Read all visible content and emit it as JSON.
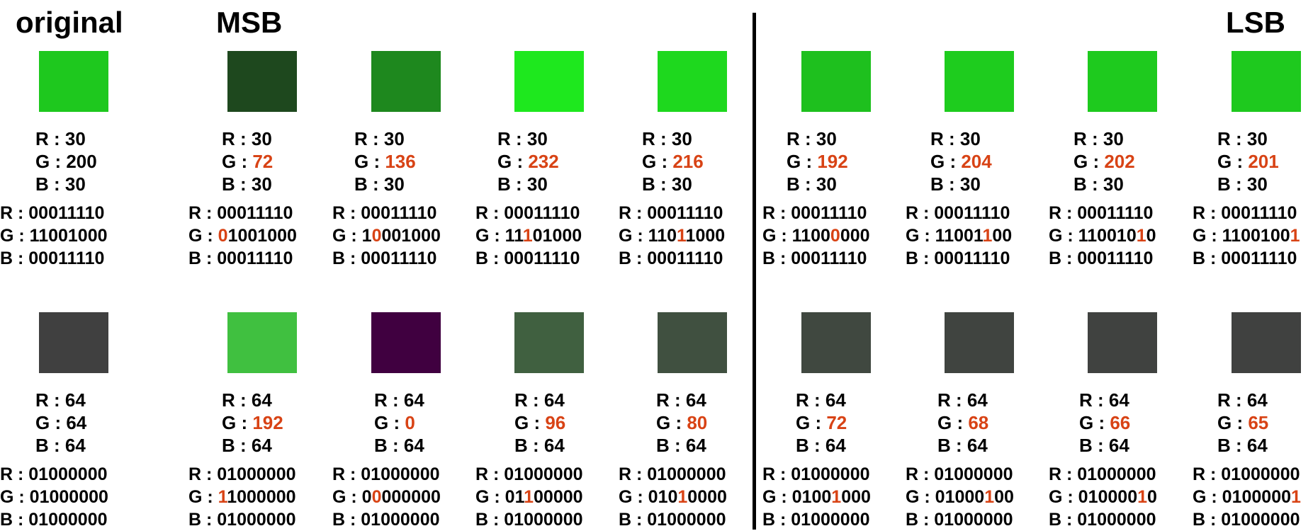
{
  "header": {
    "original": "original",
    "msb": "MSB",
    "lsb": "LSB"
  },
  "colors": {
    "highlight": "#d84315",
    "divider": "#000000",
    "text": "#000000"
  },
  "rows": [
    {
      "cells": [
        {
          "swatch": "#1ec81e",
          "r": "30",
          "g": "200",
          "b": "30",
          "r_bin": "00011110",
          "g_bin": "11001000",
          "b_bin": "00011110",
          "flip": -1
        },
        {
          "swatch": "#1e481e",
          "r": "30",
          "g": "72",
          "b": "30",
          "r_bin": "00011110",
          "g_bin": "01001000",
          "b_bin": "00011110",
          "flip": 0
        },
        {
          "swatch": "#1e881e",
          "r": "30",
          "g": "136",
          "b": "30",
          "r_bin": "00011110",
          "g_bin": "10001000",
          "b_bin": "00011110",
          "flip": 1
        },
        {
          "swatch": "#1ee81e",
          "r": "30",
          "g": "232",
          "b": "30",
          "r_bin": "00011110",
          "g_bin": "11101000",
          "b_bin": "00011110",
          "flip": 2
        },
        {
          "swatch": "#1ed81e",
          "r": "30",
          "g": "216",
          "b": "30",
          "r_bin": "00011110",
          "g_bin": "11011000",
          "b_bin": "00011110",
          "flip": 3
        },
        {
          "swatch": "#1ec01e",
          "r": "30",
          "g": "192",
          "b": "30",
          "r_bin": "00011110",
          "g_bin": "11000000",
          "b_bin": "00011110",
          "flip": 4
        },
        {
          "swatch": "#1ecc1e",
          "r": "30",
          "g": "204",
          "b": "30",
          "r_bin": "00011110",
          "g_bin": "11001100",
          "b_bin": "00011110",
          "flip": 5
        },
        {
          "swatch": "#1eca1e",
          "r": "30",
          "g": "202",
          "b": "30",
          "r_bin": "00011110",
          "g_bin": "11001010",
          "b_bin": "00011110",
          "flip": 6
        },
        {
          "swatch": "#1ec91e",
          "r": "30",
          "g": "201",
          "b": "30",
          "r_bin": "00011110",
          "g_bin": "11001001",
          "b_bin": "00011110",
          "flip": 7
        }
      ]
    },
    {
      "cells": [
        {
          "swatch": "#404040",
          "r": "64",
          "g": "64",
          "b": "64",
          "r_bin": "01000000",
          "g_bin": "01000000",
          "b_bin": "01000000",
          "flip": -1
        },
        {
          "swatch": "#40c040",
          "r": "64",
          "g": "192",
          "b": "64",
          "r_bin": "01000000",
          "g_bin": "11000000",
          "b_bin": "01000000",
          "flip": 0
        },
        {
          "swatch": "#400040",
          "r": "64",
          "g": "0",
          "b": "64",
          "r_bin": "01000000",
          "g_bin": "00000000",
          "b_bin": "01000000",
          "flip": 1
        },
        {
          "swatch": "#406040",
          "r": "64",
          "g": "96",
          "b": "64",
          "r_bin": "01000000",
          "g_bin": "01100000",
          "b_bin": "01000000",
          "flip": 2
        },
        {
          "swatch": "#405040",
          "r": "64",
          "g": "80",
          "b": "64",
          "r_bin": "01000000",
          "g_bin": "01010000",
          "b_bin": "01000000",
          "flip": 3
        },
        {
          "swatch": "#404840",
          "r": "64",
          "g": "72",
          "b": "64",
          "r_bin": "01000000",
          "g_bin": "01001000",
          "b_bin": "01000000",
          "flip": 4
        },
        {
          "swatch": "#404440",
          "r": "64",
          "g": "68",
          "b": "64",
          "r_bin": "01000000",
          "g_bin": "01000100",
          "b_bin": "01000000",
          "flip": 5
        },
        {
          "swatch": "#404240",
          "r": "64",
          "g": "66",
          "b": "64",
          "r_bin": "01000000",
          "g_bin": "01000010",
          "b_bin": "01000000",
          "flip": 6
        },
        {
          "swatch": "#404140",
          "r": "64",
          "g": "65",
          "b": "64",
          "r_bin": "01000000",
          "g_bin": "01000001",
          "b_bin": "01000000",
          "flip": 7
        }
      ]
    }
  ]
}
